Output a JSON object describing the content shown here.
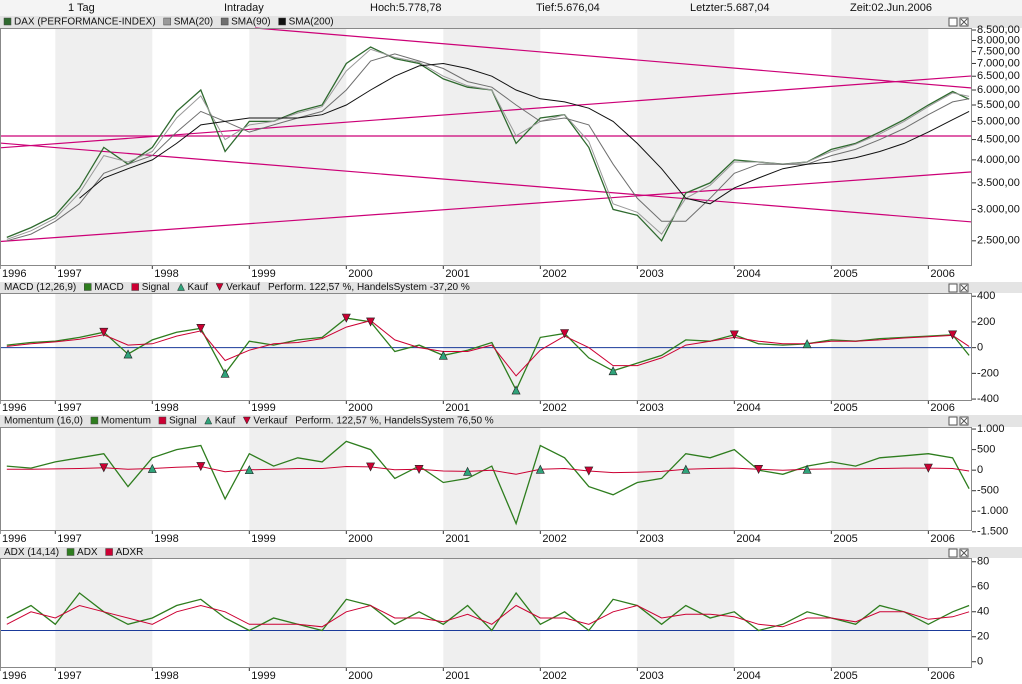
{
  "header": {
    "period": "1 Tag",
    "mode": "Intraday",
    "high": "Hoch:5.778,78",
    "low": "Tief:5.676,04",
    "last": "Letzter:5.687,04",
    "time": "Zeit:02.Jun.2006"
  },
  "chart_data": [
    {
      "type": "line",
      "log": true,
      "x": [
        1996.5,
        1996.75,
        1997,
        1997.25,
        1997.5,
        1997.75,
        1998,
        1998.25,
        1998.5,
        1998.75,
        1999,
        1999.25,
        1999.5,
        1999.75,
        2000,
        2000.25,
        2000.5,
        2000.75,
        2001,
        2001.25,
        2001.5,
        2001.75,
        2002,
        2002.25,
        2002.5,
        2002.75,
        2003,
        2003.25,
        2003.5,
        2003.75,
        2004,
        2004.25,
        2004.5,
        2004.75,
        2005,
        2005.25,
        2005.5,
        2005.75,
        2006,
        2006.25,
        2006.42
      ],
      "series": [
        {
          "name": "DAX (PERFORMANCE-INDEX)",
          "color": "#2f6a2f",
          "values": [
            2550,
            2700,
            2900,
            3400,
            4300,
            3900,
            4300,
            5300,
            6000,
            4200,
            5000,
            5000,
            5300,
            5500,
            7000,
            7700,
            7200,
            7000,
            6400,
            6100,
            6000,
            4400,
            5100,
            5200,
            4300,
            3000,
            2900,
            2500,
            3300,
            3500,
            4000,
            3950,
            3900,
            3950,
            4250,
            4400,
            4700,
            5050,
            5500,
            5950,
            5690
          ]
        },
        {
          "name": "SMA(20)",
          "color": "#9a9a9a",
          "values": [
            2520,
            2650,
            2850,
            3300,
            4100,
            3950,
            4200,
            5100,
            5800,
            4500,
            4900,
            5000,
            5250,
            5450,
            6700,
            7600,
            7250,
            7050,
            6500,
            6150,
            6000,
            4600,
            5000,
            5200,
            4450,
            3100,
            2950,
            2600,
            3200,
            3450,
            3950,
            3950,
            3900,
            3950,
            4200,
            4380,
            4650,
            5000,
            5450,
            5900,
            5780
          ]
        },
        {
          "name": "SMA(90)",
          "color": "#6f6f6f",
          "values": [
            2500,
            2600,
            2800,
            3100,
            3700,
            3900,
            4100,
            4700,
            5300,
            5000,
            4700,
            4900,
            5100,
            5300,
            6000,
            7100,
            7400,
            7100,
            6800,
            6300,
            6100,
            5500,
            5000,
            5100,
            4900,
            3900,
            3200,
            2800,
            2800,
            3200,
            3700,
            3900,
            3900,
            3900,
            4100,
            4250,
            4500,
            4800,
            5200,
            5600,
            5700
          ]
        },
        {
          "name": "SMA(200)",
          "color": "#111111",
          "values": [
            null,
            null,
            null,
            3200,
            3600,
            3800,
            4000,
            4400,
            4900,
            5000,
            5100,
            5100,
            5100,
            5200,
            5500,
            6000,
            6500,
            6900,
            7000,
            6800,
            6500,
            6000,
            5700,
            5600,
            5400,
            5000,
            4400,
            3800,
            3200,
            3100,
            3400,
            3600,
            3800,
            3900,
            3950,
            4050,
            4200,
            4400,
            4700,
            5050,
            5300
          ]
        }
      ],
      "trend_color": "#cc0077",
      "trend_lines": [
        {
          "x": [
            1999.06,
            2006.45
          ],
          "y": [
            8600,
            6070
          ]
        },
        {
          "x": [
            1996.43,
            2006.45
          ],
          "y": [
            2490,
            3730
          ]
        },
        {
          "x": [
            1996.43,
            2006.45
          ],
          "y": [
            4290,
            6510
          ]
        },
        {
          "x": [
            1996.43,
            2006.45
          ],
          "y": [
            4410,
            2790
          ]
        },
        {
          "x": [
            1996.43,
            2006.45
          ],
          "y": [
            4595,
            4595
          ]
        }
      ],
      "xlim": [
        1996.43,
        2006.45
      ],
      "xticks": [
        {
          "value": 1996.43,
          "label": "1996"
        },
        1997,
        1998,
        1999,
        2000,
        2001,
        2002,
        2003,
        2004,
        2005,
        2006
      ],
      "ylim": [
        2160,
        8600
      ],
      "yticks": [
        {
          "value": 2500,
          "label": "2.500,00"
        },
        {
          "value": 3000,
          "label": "3.000,00"
        },
        {
          "value": 3500,
          "label": "3.500,00"
        },
        {
          "value": 4000,
          "label": "4.000,00"
        },
        {
          "value": 4500,
          "label": "4.500,00"
        },
        {
          "value": 5000,
          "label": "5.000,00"
        },
        {
          "value": 5500,
          "label": "5.500,00"
        },
        {
          "value": 6000,
          "label": "6.000,00"
        },
        {
          "value": 6500,
          "label": "6.500,00"
        },
        {
          "value": 7000,
          "label": "7.000,00"
        },
        {
          "value": 7500,
          "label": "7.500,00"
        },
        {
          "value": 8000,
          "label": "8.000,00"
        },
        {
          "value": 8500,
          "label": "8.500,00"
        }
      ]
    },
    {
      "type": "line",
      "title": "MACD (12,26,9)",
      "annotation": "Perform. 122,57 %, HandelsSystem -37,20 %",
      "x": [
        1996.5,
        1996.75,
        1997,
        1997.25,
        1997.5,
        1997.75,
        1998,
        1998.25,
        1998.5,
        1998.75,
        1999,
        1999.25,
        1999.5,
        1999.75,
        2000,
        2000.25,
        2000.5,
        2000.75,
        2001,
        2001.25,
        2001.5,
        2001.75,
        2002,
        2002.25,
        2002.5,
        2002.75,
        2003,
        2003.25,
        2003.5,
        2003.75,
        2004,
        2004.25,
        2004.5,
        2004.75,
        2005,
        2005.25,
        2005.5,
        2005.75,
        2006,
        2006.25,
        2006.42
      ],
      "series": [
        {
          "name": "MACD",
          "color": "#2e7d1e",
          "values": [
            20,
            40,
            50,
            80,
            120,
            -50,
            60,
            120,
            150,
            -200,
            50,
            20,
            60,
            80,
            230,
            200,
            -30,
            20,
            -60,
            -20,
            40,
            -330,
            80,
            110,
            -80,
            -180,
            -120,
            -60,
            60,
            50,
            100,
            30,
            20,
            30,
            60,
            50,
            70,
            80,
            90,
            100,
            -60
          ]
        },
        {
          "name": "Signal",
          "color": "#cc0033",
          "values": [
            10,
            30,
            45,
            65,
            100,
            20,
            30,
            90,
            130,
            -100,
            -20,
            30,
            40,
            70,
            160,
            210,
            60,
            0,
            -30,
            -30,
            20,
            -220,
            -20,
            90,
            0,
            -140,
            -140,
            -80,
            20,
            50,
            80,
            50,
            30,
            30,
            50,
            50,
            60,
            75,
            85,
            95,
            10
          ]
        },
        {
          "name": "Kauf",
          "color": "#2fa37a",
          "marker": "up",
          "values": [
            null,
            null,
            null,
            null,
            null,
            -50,
            null,
            null,
            null,
            -200,
            null,
            null,
            null,
            null,
            null,
            null,
            null,
            null,
            -60,
            null,
            null,
            -330,
            null,
            null,
            null,
            -180,
            null,
            null,
            null,
            null,
            null,
            null,
            null,
            30,
            null,
            null,
            null,
            null,
            null,
            null,
            null
          ]
        },
        {
          "name": "Verkauf",
          "color": "#cc0033",
          "marker": "down",
          "values": [
            null,
            null,
            null,
            null,
            120,
            null,
            null,
            null,
            150,
            null,
            null,
            null,
            null,
            null,
            230,
            200,
            null,
            null,
            null,
            null,
            null,
            null,
            null,
            110,
            null,
            null,
            null,
            null,
            null,
            null,
            100,
            null,
            null,
            null,
            null,
            null,
            null,
            null,
            null,
            100,
            null
          ]
        }
      ],
      "hline": 0,
      "hline_color": "#1a3a9a",
      "xlim": [
        1996.43,
        2006.45
      ],
      "xticks": [
        {
          "value": 1996.43,
          "label": "1996"
        },
        1997,
        1998,
        1999,
        2000,
        2001,
        2002,
        2003,
        2004,
        2005,
        2006
      ],
      "ylim": [
        -415,
        425
      ],
      "yticks": [
        400,
        200,
        0,
        -200,
        -400
      ]
    },
    {
      "type": "line",
      "title": "Momentum (16,0)",
      "annotation": "Perform. 122,57 %, HandelsSystem 76,50 %",
      "x": [
        1996.5,
        1996.75,
        1997,
        1997.25,
        1997.5,
        1997.75,
        1998,
        1998.25,
        1998.5,
        1998.75,
        1999,
        1999.25,
        1999.5,
        1999.75,
        2000,
        2000.25,
        2000.5,
        2000.75,
        2001,
        2001.25,
        2001.5,
        2001.75,
        2002,
        2002.25,
        2002.5,
        2002.75,
        2003,
        2003.25,
        2003.5,
        2003.75,
        2004,
        2004.25,
        2004.5,
        2004.75,
        2005,
        2005.25,
        2005.5,
        2005.75,
        2006,
        2006.25,
        2006.42
      ],
      "series": [
        {
          "name": "Momentum",
          "color": "#2e7d1e",
          "values": [
            100,
            50,
            200,
            300,
            400,
            -400,
            300,
            500,
            600,
            -700,
            400,
            100,
            300,
            200,
            700,
            500,
            -200,
            100,
            -300,
            -200,
            100,
            -1300,
            600,
            300,
            -400,
            -600,
            -300,
            -200,
            400,
            300,
            500,
            0,
            -100,
            100,
            200,
            100,
            300,
            350,
            400,
            300,
            -450
          ]
        },
        {
          "name": "Signal",
          "color": "#cc0033",
          "values": [
            20,
            20,
            30,
            40,
            60,
            20,
            40,
            70,
            90,
            -40,
            10,
            20,
            40,
            40,
            90,
            80,
            10,
            20,
            -20,
            -30,
            0,
            -100,
            20,
            40,
            -20,
            -60,
            -50,
            -30,
            20,
            40,
            50,
            20,
            0,
            20,
            30,
            30,
            40,
            50,
            50,
            40,
            -20
          ]
        },
        {
          "name": "Kauf",
          "color": "#2fa37a",
          "marker": "up",
          "values": [
            null,
            null,
            null,
            null,
            null,
            null,
            40,
            null,
            null,
            null,
            10,
            null,
            null,
            null,
            null,
            null,
            null,
            null,
            null,
            -30,
            null,
            null,
            20,
            null,
            null,
            null,
            null,
            null,
            20,
            null,
            null,
            null,
            null,
            20,
            null,
            null,
            null,
            null,
            null,
            null,
            null
          ]
        },
        {
          "name": "Verkauf",
          "color": "#cc0033",
          "marker": "down",
          "values": [
            null,
            null,
            null,
            null,
            60,
            null,
            null,
            null,
            90,
            null,
            null,
            null,
            null,
            null,
            null,
            80,
            null,
            20,
            null,
            null,
            null,
            null,
            null,
            null,
            -20,
            null,
            null,
            null,
            null,
            null,
            null,
            20,
            null,
            null,
            null,
            null,
            null,
            null,
            50,
            null,
            null
          ]
        }
      ],
      "xlim": [
        1996.43,
        2006.45
      ],
      "xticks": [
        {
          "value": 1996.43,
          "label": "1996"
        },
        1997,
        1998,
        1999,
        2000,
        2001,
        2002,
        2003,
        2004,
        2005,
        2006
      ],
      "ylim": [
        -1480,
        1050
      ],
      "yticks": [
        {
          "value": 1000,
          "label": "1.000"
        },
        500,
        0,
        -500,
        {
          "value": -1000,
          "label": "-1.000"
        },
        {
          "value": -1500,
          "label": "-1.500"
        }
      ]
    },
    {
      "type": "line",
      "title": "ADX (14,14)",
      "x": [
        1996.5,
        1996.75,
        1997,
        1997.25,
        1997.5,
        1997.75,
        1998,
        1998.25,
        1998.5,
        1998.75,
        1999,
        1999.25,
        1999.5,
        1999.75,
        2000,
        2000.25,
        2000.5,
        2000.75,
        2001,
        2001.25,
        2001.5,
        2001.75,
        2002,
        2002.25,
        2002.5,
        2002.75,
        2003,
        2003.25,
        2003.5,
        2003.75,
        2004,
        2004.25,
        2004.5,
        2004.75,
        2005,
        2005.25,
        2005.5,
        2005.75,
        2006,
        2006.25,
        2006.42
      ],
      "series": [
        {
          "name": "ADX",
          "color": "#2e7d1e",
          "values": [
            35,
            45,
            30,
            55,
            40,
            30,
            35,
            45,
            50,
            35,
            25,
            35,
            30,
            25,
            50,
            45,
            30,
            40,
            30,
            45,
            25,
            55,
            30,
            40,
            25,
            50,
            45,
            30,
            45,
            35,
            40,
            25,
            30,
            40,
            35,
            30,
            45,
            40,
            30,
            40,
            45
          ]
        },
        {
          "name": "ADXR",
          "color": "#cc0033",
          "values": [
            30,
            40,
            35,
            45,
            40,
            35,
            30,
            40,
            45,
            40,
            30,
            30,
            30,
            28,
            40,
            45,
            35,
            35,
            32,
            38,
            30,
            45,
            35,
            35,
            30,
            40,
            45,
            35,
            38,
            38,
            36,
            30,
            28,
            35,
            35,
            32,
            40,
            40,
            34,
            36,
            40
          ]
        }
      ],
      "hline": 25,
      "hline_color": "#1a3a9a",
      "xlim": [
        1996.43,
        2006.45
      ],
      "xticks": [
        {
          "value": 1996.43,
          "label": "1996"
        },
        1997,
        1998,
        1999,
        2000,
        2001,
        2002,
        2003,
        2004,
        2005,
        2006
      ],
      "ylim": [
        -5,
        83
      ],
      "yticks": [
        80,
        60,
        40,
        20,
        0
      ]
    }
  ]
}
